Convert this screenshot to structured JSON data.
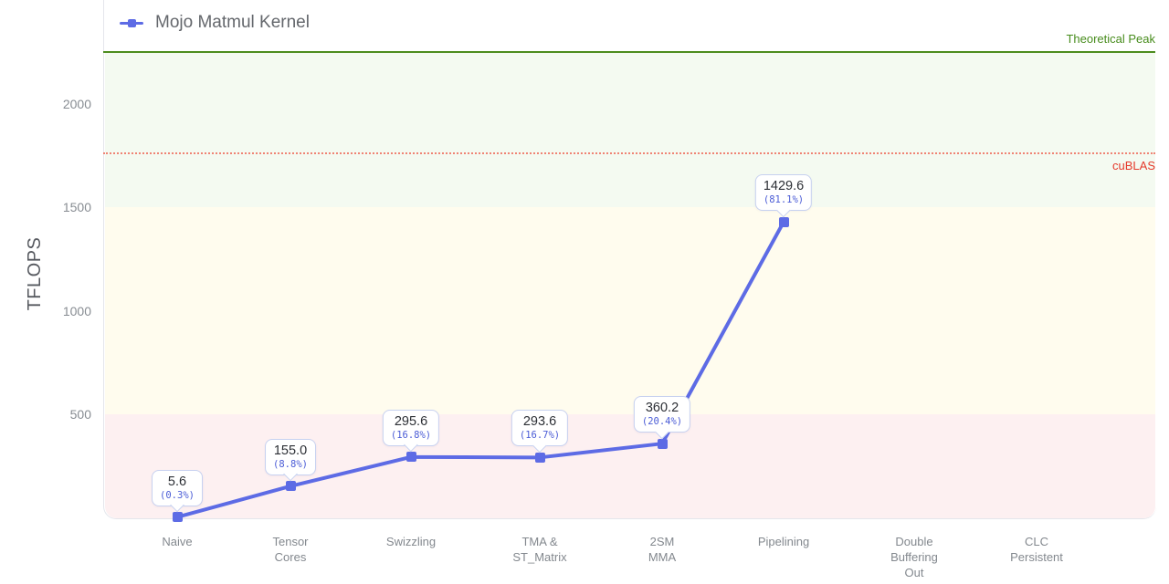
{
  "legend": {
    "label": "Mojo Matmul Kernel"
  },
  "y_axis": {
    "title": "TFLOPS",
    "ticks": [
      "500",
      "1000",
      "1500",
      "2000"
    ]
  },
  "chart_data": {
    "type": "line",
    "title": "Mojo Matmul Kernel",
    "xlabel": "",
    "ylabel": "TFLOPS",
    "ylim": [
      0,
      2250
    ],
    "grid": false,
    "legend_position": "top-left",
    "categories": [
      "Naive",
      "Tensor\nCores",
      "Swizzling",
      "TMA &\nST_Matrix",
      "2SM\nMMA",
      "Pipelining",
      "Double\nBuffering\nOut",
      "CLC\nPersistent"
    ],
    "series": [
      {
        "name": "Mojo Matmul Kernel",
        "values": [
          5.6,
          155.0,
          295.6,
          293.6,
          360.2,
          1429.6,
          null,
          null
        ],
        "value_labels": [
          "5.6",
          "155.0",
          "295.6",
          "293.6",
          "360.2",
          "1429.6"
        ],
        "percent_labels": [
          "(0.3%)",
          "(8.8%)",
          "(16.8%)",
          "(16.7%)",
          "(20.4%)",
          "(81.1%)"
        ]
      }
    ],
    "reference_lines": [
      {
        "label": "Theoretical Peak",
        "value": 2250,
        "style": "solid",
        "line_color": "#4c8c1e",
        "label_color": "#478c1c"
      },
      {
        "label": "cuBLAS",
        "value": 1763,
        "style": "dotted",
        "line_color": "#ef8374",
        "label_color": "#e5392b"
      }
    ],
    "bands": [
      {
        "from": 0,
        "to": 500,
        "color": "#fdf0f1"
      },
      {
        "from": 500,
        "to": 1500,
        "color": "#fffcee"
      },
      {
        "from": 1500,
        "to": 2250,
        "color": "#f4faf1"
      }
    ],
    "colors": {
      "series": "#5d6be5",
      "tooltip_border": "#c7d1f0",
      "tooltip_value": "#2c2f35",
      "tooltip_percent": "#4b5cd6"
    }
  }
}
